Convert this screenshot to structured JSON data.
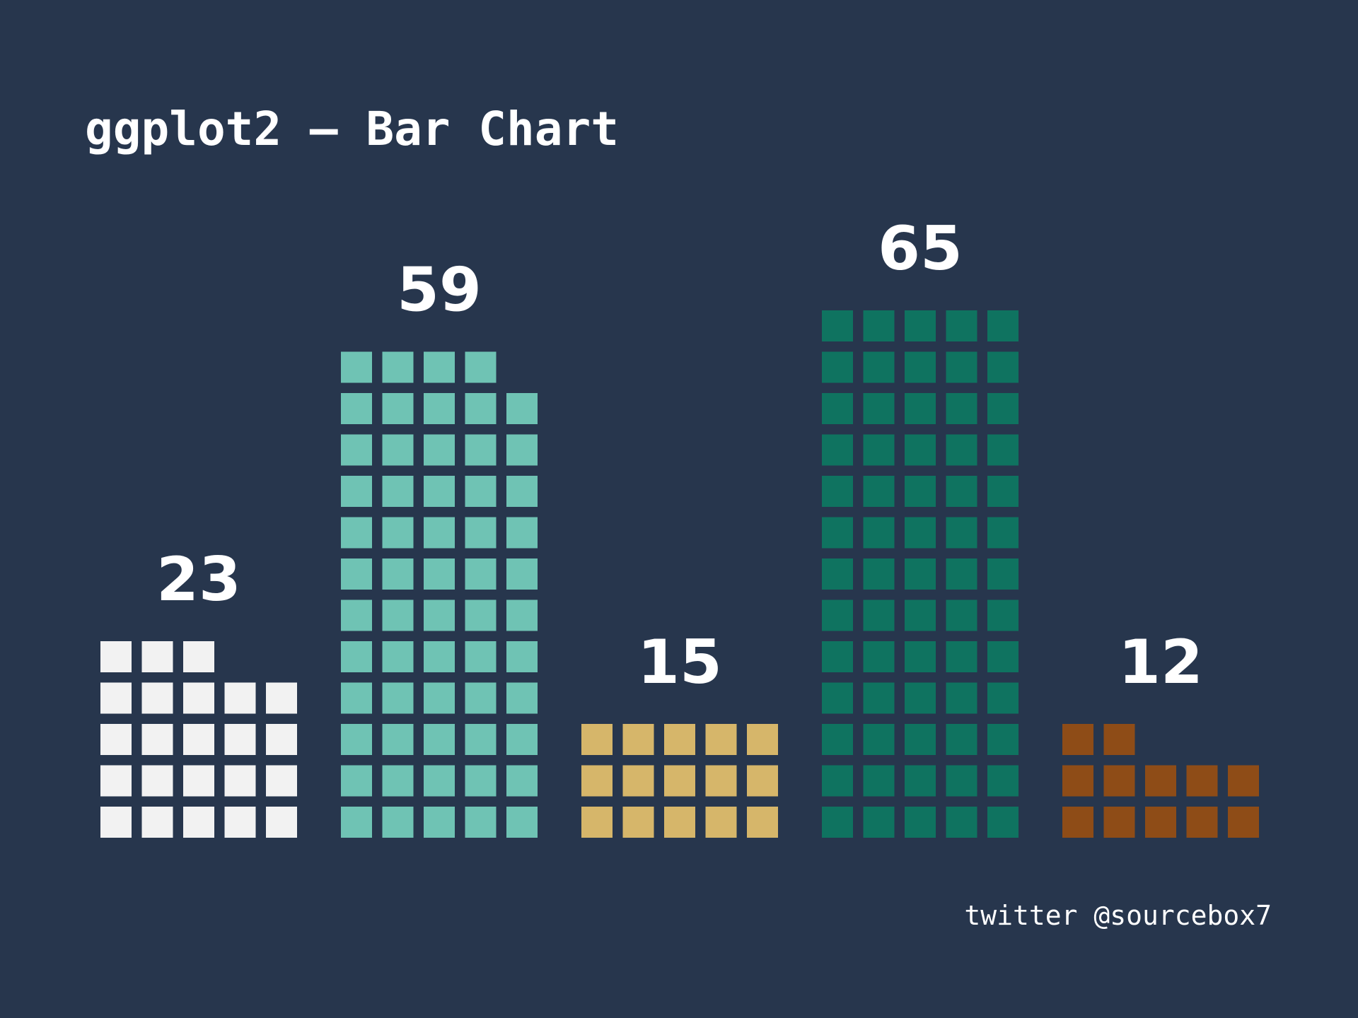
{
  "title": "ggplot2 – Bar Chart",
  "caption": "twitter @sourcebox7",
  "chart_data": {
    "type": "bar",
    "style": "waffle (one square per unit, 5 per row)",
    "title": "ggplot2 – Bar Chart",
    "xlabel": "",
    "ylabel": "",
    "grid": false,
    "legend": "none",
    "categories": [
      "",
      "",
      "",
      "",
      ""
    ],
    "values": [
      23,
      59,
      15,
      65,
      12
    ],
    "data_labels": [
      "23",
      "59",
      "15",
      "65",
      "12"
    ],
    "colors": [
      "#f2f2f2",
      "#6fc3b4",
      "#d6b66a",
      "#0f7360",
      "#8e4c17"
    ],
    "background": "#27364d"
  }
}
